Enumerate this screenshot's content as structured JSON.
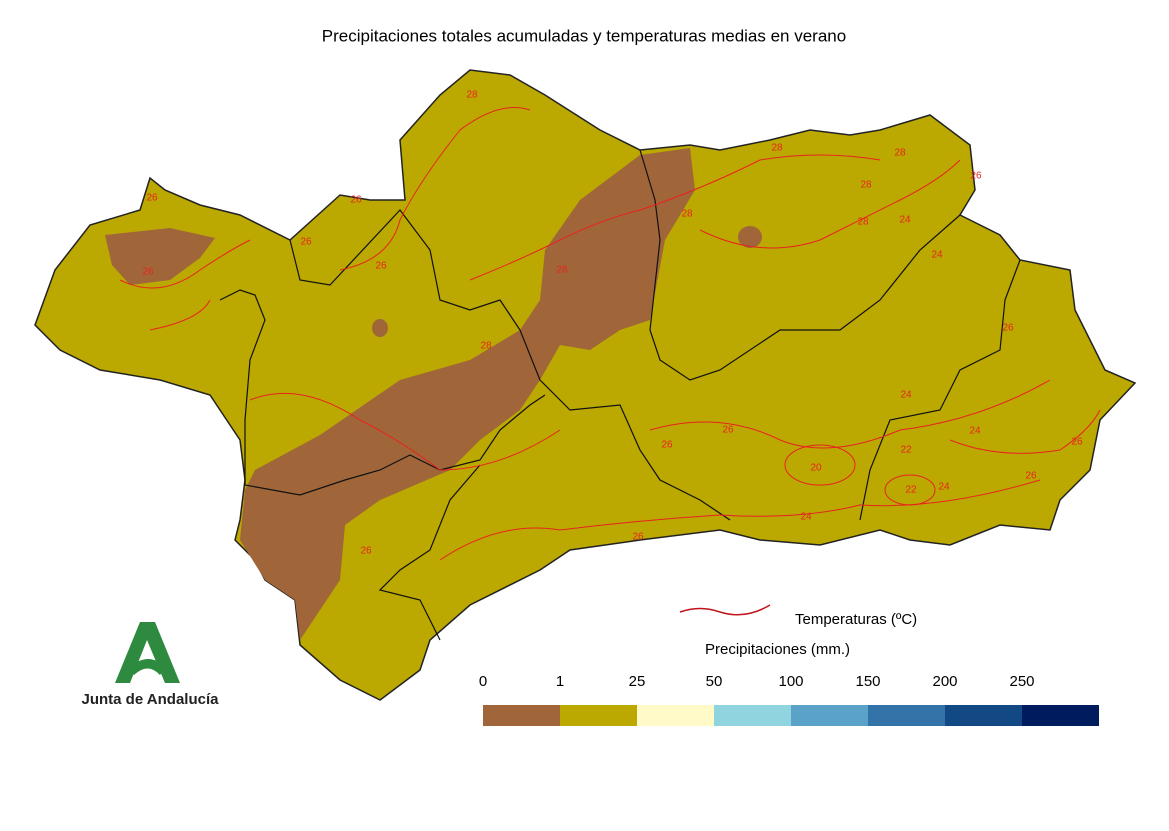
{
  "title": "Precipitaciones totales acumuladas y temperaturas medias en verano",
  "contour_labels": [
    28,
    26,
    26,
    26,
    26,
    26,
    28,
    28,
    28,
    28,
    28,
    28,
    26,
    28,
    24,
    24,
    26,
    24,
    22,
    20,
    22,
    24,
    24,
    26,
    26,
    24,
    26,
    26,
    26,
    26
  ],
  "legend": {
    "temperature_label": "Temperaturas (ºC)",
    "precipitation_label": "Precipitaciones (mm.)",
    "breaks": [
      0,
      1,
      25,
      50,
      100,
      150,
      200,
      250
    ],
    "colors": [
      "#a0663a",
      "#bba800",
      "#fffac8",
      "#8fd4df",
      "#5aa2c8",
      "#3473a8",
      "#124884",
      "#001c5e"
    ]
  },
  "logo": {
    "text": "Junta de Andalucía"
  }
}
